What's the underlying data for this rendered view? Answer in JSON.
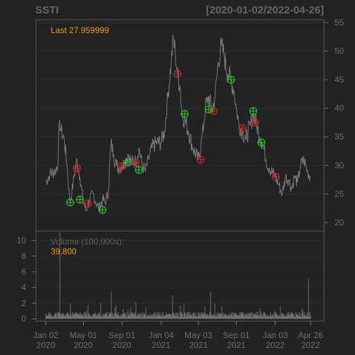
{
  "chart_data": {
    "type": "line",
    "title_left": "SSTI",
    "title_right": "[2020-01-02/2022-04-26]",
    "last_label": "Last 27.959999",
    "x_ticks": [
      {
        "date": "2020-01-02",
        "line1": "Jan 02",
        "line2": "2020"
      },
      {
        "date": "2020-05-01",
        "line1": "May 01",
        "line2": "2020"
      },
      {
        "date": "2020-09-01",
        "line1": "Sep 01",
        "line2": "2020"
      },
      {
        "date": "2021-01-04",
        "line1": "Jan 04",
        "line2": "2021"
      },
      {
        "date": "2021-05-03",
        "line1": "May 03",
        "line2": "2021"
      },
      {
        "date": "2021-09-01",
        "line1": "Sep 01",
        "line2": "2021"
      },
      {
        "date": "2022-01-03",
        "line1": "Jan 03",
        "line2": "2022"
      },
      {
        "date": "2022-04-26",
        "line1": "Apr 26",
        "line2": "2022"
      }
    ],
    "price_axis": {
      "ticks": [
        20,
        25,
        30,
        35,
        40,
        45,
        50,
        55
      ],
      "ylim": [
        18.5,
        55.5
      ]
    },
    "price_series": [
      [
        "2020-01-02",
        27
      ],
      [
        "2020-01-15",
        28.5
      ],
      [
        "2020-02-01",
        29
      ],
      [
        "2020-02-10",
        30.5
      ],
      [
        "2020-02-15",
        38
      ],
      [
        "2020-02-20",
        36
      ],
      [
        "2020-03-01",
        34.5
      ],
      [
        "2020-03-10",
        30
      ],
      [
        "2020-03-18",
        24
      ],
      [
        "2020-03-25",
        25
      ],
      [
        "2020-04-01",
        28
      ],
      [
        "2020-04-10",
        31
      ],
      [
        "2020-04-20",
        28
      ],
      [
        "2020-05-01",
        23.5
      ],
      [
        "2020-05-10",
        22
      ],
      [
        "2020-05-20",
        24
      ],
      [
        "2020-06-01",
        25
      ],
      [
        "2020-06-10",
        23.5
      ],
      [
        "2020-06-20",
        22.5
      ],
      [
        "2020-07-01",
        24
      ],
      [
        "2020-07-10",
        23.5
      ],
      [
        "2020-07-20",
        25.5
      ],
      [
        "2020-07-28",
        34
      ],
      [
        "2020-08-05",
        32
      ],
      [
        "2020-08-15",
        30
      ],
      [
        "2020-08-25",
        29.5
      ],
      [
        "2020-09-01",
        30
      ],
      [
        "2020-09-10",
        30.5
      ],
      [
        "2020-09-20",
        32
      ],
      [
        "2020-10-01",
        30.5
      ],
      [
        "2020-10-15",
        30.8
      ],
      [
        "2020-10-25",
        33
      ],
      [
        "2020-11-05",
        30
      ],
      [
        "2020-11-15",
        29
      ],
      [
        "2020-11-25",
        31
      ],
      [
        "2020-12-05",
        33
      ],
      [
        "2020-12-20",
        34
      ],
      [
        "2021-01-04",
        34
      ],
      [
        "2021-01-15",
        36
      ],
      [
        "2021-01-25",
        42
      ],
      [
        "2021-02-05",
        48
      ],
      [
        "2021-02-12",
        52
      ],
      [
        "2021-02-18",
        50
      ],
      [
        "2021-02-25",
        46
      ],
      [
        "2021-03-05",
        44
      ],
      [
        "2021-03-12",
        39
      ],
      [
        "2021-03-20",
        38
      ],
      [
        "2021-04-01",
        36
      ],
      [
        "2021-04-15",
        33
      ],
      [
        "2021-05-03",
        31
      ],
      [
        "2021-05-15",
        35
      ],
      [
        "2021-05-25",
        40
      ],
      [
        "2021-06-05",
        42
      ],
      [
        "2021-06-15",
        39.5
      ],
      [
        "2021-06-25",
        42
      ],
      [
        "2021-07-05",
        48
      ],
      [
        "2021-07-15",
        51
      ],
      [
        "2021-07-25",
        49
      ],
      [
        "2021-08-05",
        46
      ],
      [
        "2021-08-15",
        45
      ],
      [
        "2021-08-25",
        43
      ],
      [
        "2021-09-01",
        40
      ],
      [
        "2021-09-10",
        37
      ],
      [
        "2021-09-20",
        36
      ],
      [
        "2021-10-01",
        34.5
      ],
      [
        "2021-10-15",
        37
      ],
      [
        "2021-10-25",
        39
      ],
      [
        "2021-11-05",
        37
      ],
      [
        "2021-11-15",
        35
      ],
      [
        "2021-11-25",
        33.5
      ],
      [
        "2021-12-05",
        31
      ],
      [
        "2021-12-15",
        29.5
      ],
      [
        "2022-01-03",
        28
      ],
      [
        "2022-01-15",
        26.5
      ],
      [
        "2022-01-25",
        25
      ],
      [
        "2022-02-05",
        28
      ],
      [
        "2022-02-15",
        27.5
      ],
      [
        "2022-02-25",
        26
      ],
      [
        "2022-03-05",
        28
      ],
      [
        "2022-03-15",
        27
      ],
      [
        "2022-03-25",
        30
      ],
      [
        "2022-04-05",
        31
      ],
      [
        "2022-04-15",
        29
      ],
      [
        "2022-04-26",
        27.96
      ]
    ],
    "buy_signals": [
      [
        "2020-03-20",
        23.5
      ],
      [
        "2020-04-20",
        24
      ],
      [
        "2020-07-01",
        22.2
      ],
      [
        "2020-09-20",
        30.5
      ],
      [
        "2020-10-25",
        29.2
      ],
      [
        "2021-03-20",
        39
      ],
      [
        "2021-06-05",
        39.8
      ],
      [
        "2021-08-15",
        45
      ],
      [
        "2021-10-25",
        39.5
      ],
      [
        "2021-11-20",
        34
      ]
    ],
    "sell_signals": [
      [
        "2020-04-10",
        29.5
      ],
      [
        "2020-05-15",
        23.3
      ],
      [
        "2020-08-30",
        29.8
      ],
      [
        "2020-10-15",
        30.5
      ],
      [
        "2021-02-25",
        46
      ],
      [
        "2021-05-10",
        31
      ],
      [
        "2021-06-20",
        39.5
      ],
      [
        "2021-09-20",
        36.5
      ],
      [
        "2021-10-30",
        37.5
      ],
      [
        "2022-01-05",
        28
      ]
    ],
    "volume_axis": {
      "ticks": [
        0,
        2,
        4,
        6,
        8,
        10
      ],
      "ylim": [
        -0.3,
        11.2
      ]
    },
    "volume_label": "Volume (100,000s):",
    "volume_last": "39,800",
    "volume_base": 0.6,
    "volume_spikes": [
      [
        "2020-02-15",
        11
      ],
      [
        "2020-03-20",
        2
      ],
      [
        "2020-05-15",
        1.8
      ],
      [
        "2020-06-25",
        2
      ],
      [
        "2020-07-28",
        3.5
      ],
      [
        "2020-08-10",
        1.5
      ],
      [
        "2020-09-20",
        1.2
      ],
      [
        "2020-11-15",
        1.5
      ],
      [
        "2021-02-10",
        3
      ],
      [
        "2021-05-25",
        1.5
      ],
      [
        "2021-06-10",
        3.5
      ],
      [
        "2021-11-20",
        1
      ],
      [
        "2022-01-20",
        1.5
      ],
      [
        "2022-04-20",
        5.2
      ]
    ],
    "colors": {
      "price": "#7A7A7A",
      "buy": "#2DBA2D",
      "sell": "#C8282D",
      "accent": "#E69E20"
    }
  }
}
